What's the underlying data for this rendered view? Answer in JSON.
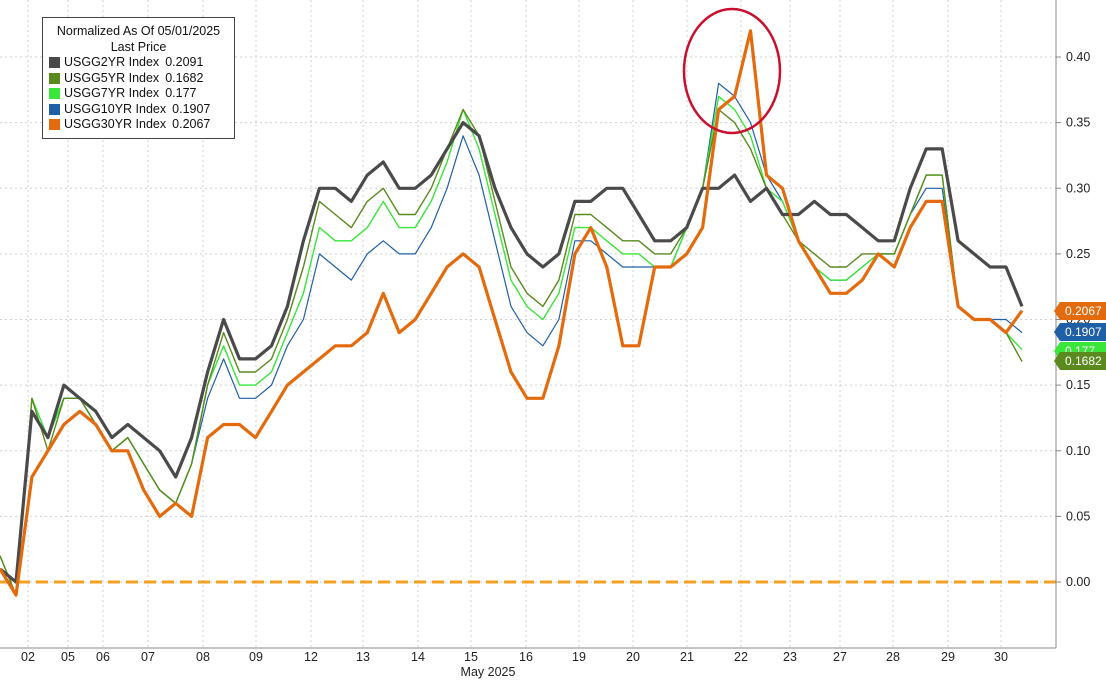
{
  "legend": {
    "title": "Normalized As Of 05/01/2025",
    "subtitle": "Last Price"
  },
  "chart_data": {
    "type": "line",
    "xlabel": "May 2025",
    "ylabel": "",
    "ylim": [
      -0.05,
      0.45
    ],
    "y_ticks": [
      "0.00",
      "0.05",
      "0.10",
      "0.15",
      "0.20",
      "0.25",
      "0.30",
      "0.35",
      "0.40"
    ],
    "x_ticks": [
      "02",
      "05",
      "06",
      "07",
      "08",
      "09",
      "12",
      "13",
      "14",
      "15",
      "16",
      "19",
      "20",
      "21",
      "22",
      "23",
      "27",
      "28",
      "29",
      "30"
    ],
    "grid": true,
    "legend_position": "top-left",
    "reference_line": 0.0,
    "series": [
      {
        "name": "USGG2YR Index",
        "last": "0.2091",
        "color": "#4a4a4a",
        "values": [
          0.01,
          0.0,
          0.13,
          0.11,
          0.15,
          0.14,
          0.13,
          0.11,
          0.12,
          0.11,
          0.1,
          0.08,
          0.11,
          0.16,
          0.2,
          0.17,
          0.17,
          0.18,
          0.21,
          0.26,
          0.3,
          0.3,
          0.29,
          0.31,
          0.32,
          0.3,
          0.3,
          0.31,
          0.33,
          0.35,
          0.34,
          0.3,
          0.27,
          0.25,
          0.24,
          0.25,
          0.29,
          0.29,
          0.3,
          0.3,
          0.28,
          0.26,
          0.26,
          0.27,
          0.3,
          0.3,
          0.31,
          0.29,
          0.3,
          0.28,
          0.28,
          0.29,
          0.28,
          0.28,
          0.27,
          0.26,
          0.26,
          0.3,
          0.33,
          0.33,
          0.26,
          0.25,
          0.24,
          0.24,
          0.21
        ]
      },
      {
        "name": "USGG5YR Index",
        "last": "0.1682",
        "color": "#5a8a1e",
        "values": [
          0.02,
          -0.01,
          0.14,
          0.1,
          0.14,
          0.14,
          0.12,
          0.1,
          0.11,
          0.09,
          0.07,
          0.06,
          0.09,
          0.15,
          0.19,
          0.16,
          0.16,
          0.17,
          0.2,
          0.24,
          0.29,
          0.28,
          0.27,
          0.29,
          0.3,
          0.28,
          0.28,
          0.3,
          0.33,
          0.36,
          0.34,
          0.29,
          0.24,
          0.22,
          0.21,
          0.23,
          0.28,
          0.28,
          0.27,
          0.26,
          0.26,
          0.25,
          0.25,
          0.27,
          0.3,
          0.36,
          0.35,
          0.33,
          0.3,
          0.28,
          0.26,
          0.25,
          0.24,
          0.24,
          0.25,
          0.25,
          0.25,
          0.28,
          0.31,
          0.31,
          0.21,
          0.2,
          0.2,
          0.19,
          0.168
        ]
      },
      {
        "name": "USGG7YR Index",
        "last": "0.177",
        "color": "#39e639",
        "values": [
          0.02,
          -0.01,
          0.14,
          0.11,
          0.14,
          0.14,
          0.12,
          0.1,
          0.11,
          0.09,
          0.07,
          0.06,
          0.09,
          0.15,
          0.18,
          0.15,
          0.15,
          0.16,
          0.19,
          0.22,
          0.27,
          0.26,
          0.26,
          0.27,
          0.29,
          0.27,
          0.27,
          0.29,
          0.32,
          0.36,
          0.33,
          0.28,
          0.23,
          0.21,
          0.2,
          0.22,
          0.27,
          0.27,
          0.26,
          0.25,
          0.25,
          0.24,
          0.24,
          0.27,
          0.3,
          0.37,
          0.36,
          0.34,
          0.3,
          0.29,
          0.26,
          0.24,
          0.23,
          0.23,
          0.24,
          0.25,
          0.25,
          0.28,
          0.31,
          0.31,
          0.21,
          0.2,
          0.2,
          0.19,
          0.177
        ]
      },
      {
        "name": "USGG10YR Index",
        "last": "0.1907",
        "color": "#1f5fa6",
        "values": [
          0.02,
          -0.01,
          0.13,
          0.11,
          0.14,
          0.14,
          0.12,
          0.1,
          0.11,
          0.09,
          0.07,
          0.06,
          0.09,
          0.14,
          0.17,
          0.14,
          0.14,
          0.15,
          0.18,
          0.2,
          0.25,
          0.24,
          0.23,
          0.25,
          0.26,
          0.25,
          0.25,
          0.27,
          0.3,
          0.34,
          0.31,
          0.26,
          0.21,
          0.19,
          0.18,
          0.2,
          0.26,
          0.26,
          0.25,
          0.24,
          0.24,
          0.24,
          0.24,
          0.27,
          0.3,
          0.38,
          0.37,
          0.35,
          0.31,
          0.29,
          0.26,
          0.24,
          0.23,
          0.23,
          0.24,
          0.25,
          0.25,
          0.28,
          0.3,
          0.3,
          0.21,
          0.2,
          0.2,
          0.2,
          0.19
        ]
      },
      {
        "name": "USGG30YR Index",
        "last": "0.2067",
        "color": "#e36b0e",
        "values": [
          0.01,
          -0.01,
          0.08,
          0.1,
          0.12,
          0.13,
          0.12,
          0.1,
          0.1,
          0.07,
          0.05,
          0.06,
          0.05,
          0.11,
          0.12,
          0.12,
          0.11,
          0.13,
          0.15,
          0.16,
          0.17,
          0.18,
          0.18,
          0.19,
          0.22,
          0.19,
          0.2,
          0.22,
          0.24,
          0.25,
          0.24,
          0.2,
          0.16,
          0.14,
          0.14,
          0.18,
          0.25,
          0.27,
          0.24,
          0.18,
          0.18,
          0.24,
          0.24,
          0.25,
          0.27,
          0.36,
          0.37,
          0.42,
          0.31,
          0.3,
          0.26,
          0.24,
          0.22,
          0.22,
          0.23,
          0.25,
          0.24,
          0.27,
          0.29,
          0.29,
          0.21,
          0.2,
          0.2,
          0.19,
          0.2067
        ]
      }
    ],
    "annotation": "red-circle-highlight"
  }
}
